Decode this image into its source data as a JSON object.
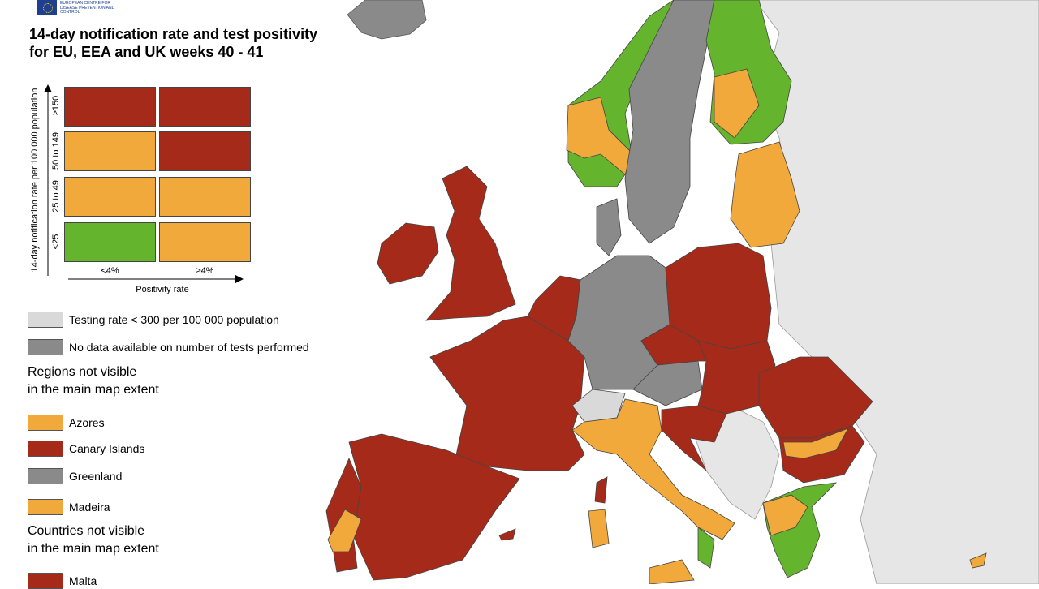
{
  "logo": {
    "text": "EUROPEAN CENTRE FOR DISEASE PREVENTION AND CONTROL"
  },
  "title": [
    "14-day notification rate and test positivity",
    "for EU, EEA and UK weeks 40 - 41"
  ],
  "colors": {
    "red": "#a52a1a",
    "orange": "#f2a93b",
    "green": "#64b42d",
    "dark_grey": "#8a8a8a",
    "light_grey": "#d9d9d9",
    "sea": "#ffffff",
    "non_eu": "#e8e8e8"
  },
  "matrix": {
    "y_axis_title": "14-day notification rate per 100 000 population",
    "x_axis_title": "Positivity rate",
    "rows": [
      "≥150",
      "50 to 149",
      "25 to 49",
      "<25"
    ],
    "cols": [
      "<4%",
      "≥4%"
    ],
    "cells": [
      [
        "red",
        "red"
      ],
      [
        "orange",
        "red"
      ],
      [
        "orange",
        "orange"
      ],
      [
        "green",
        "orange"
      ]
    ]
  },
  "legend": {
    "testing_rate": "Testing rate < 300 per 100 000 population",
    "no_data": "No data available on number of tests performed",
    "regions_heading": [
      "Regions not visible",
      "in the main map extent"
    ],
    "regions": [
      {
        "name": "Azores",
        "color": "orange"
      },
      {
        "name": "Canary Islands",
        "color": "red"
      },
      {
        "name": "Greenland",
        "color": "dark_grey"
      },
      {
        "name": "Madeira",
        "color": "orange"
      }
    ],
    "countries_heading": [
      "Countries not visible",
      "in the main map extent"
    ],
    "countries": [
      {
        "name": "Malta",
        "color": "red"
      }
    ]
  }
}
